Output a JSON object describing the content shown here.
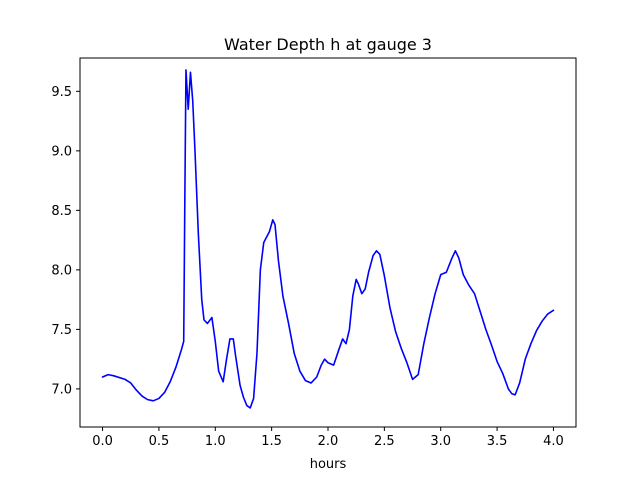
{
  "chart_data": {
    "type": "line",
    "title": "Water Depth h at gauge 3",
    "xlabel": "hours",
    "ylabel": "",
    "xlim": [
      -0.2,
      4.2
    ],
    "ylim": [
      6.68,
      9.78
    ],
    "xticks": [
      0.0,
      0.5,
      1.0,
      1.5,
      2.0,
      2.5,
      3.0,
      3.5,
      4.0
    ],
    "xtick_labels": [
      "0.0",
      "0.5",
      "1.0",
      "1.5",
      "2.0",
      "2.5",
      "3.0",
      "3.5",
      "4.0"
    ],
    "yticks": [
      7.0,
      7.5,
      8.0,
      8.5,
      9.0,
      9.5
    ],
    "ytick_labels": [
      "7.0",
      "7.5",
      "8.0",
      "8.5",
      "9.0",
      "9.5"
    ],
    "grid": false,
    "series": [
      {
        "name": "",
        "color": "#0000ff",
        "x": [
          0.0,
          0.05,
          0.1,
          0.2,
          0.25,
          0.3,
          0.35,
          0.4,
          0.45,
          0.5,
          0.55,
          0.6,
          0.65,
          0.7,
          0.72,
          0.73,
          0.74,
          0.76,
          0.78,
          0.8,
          0.82,
          0.85,
          0.88,
          0.9,
          0.93,
          0.97,
          1.0,
          1.03,
          1.07,
          1.1,
          1.13,
          1.16,
          1.18,
          1.22,
          1.25,
          1.28,
          1.31,
          1.34,
          1.37,
          1.4,
          1.43,
          1.48,
          1.51,
          1.53,
          1.56,
          1.6,
          1.65,
          1.7,
          1.75,
          1.8,
          1.85,
          1.9,
          1.94,
          1.97,
          2.0,
          2.05,
          2.1,
          2.13,
          2.16,
          2.19,
          2.22,
          2.25,
          2.27,
          2.3,
          2.33,
          2.36,
          2.4,
          2.43,
          2.46,
          2.5,
          2.55,
          2.6,
          2.65,
          2.7,
          2.75,
          2.8,
          2.85,
          2.9,
          2.95,
          3.0,
          3.05,
          3.1,
          3.13,
          3.16,
          3.2,
          3.25,
          3.3,
          3.35,
          3.4,
          3.45,
          3.5,
          3.55,
          3.6,
          3.63,
          3.66,
          3.7,
          3.75,
          3.8,
          3.85,
          3.9,
          3.95,
          4.0
        ],
        "y": [
          7.1,
          7.12,
          7.11,
          7.08,
          7.05,
          6.99,
          6.94,
          6.91,
          6.9,
          6.92,
          6.97,
          7.06,
          7.18,
          7.33,
          7.4,
          8.6,
          9.68,
          9.35,
          9.66,
          9.42,
          9.0,
          8.3,
          7.75,
          7.58,
          7.55,
          7.6,
          7.4,
          7.15,
          7.06,
          7.25,
          7.42,
          7.42,
          7.28,
          7.03,
          6.93,
          6.86,
          6.84,
          6.92,
          7.3,
          8.0,
          8.23,
          8.32,
          8.42,
          8.38,
          8.08,
          7.78,
          7.55,
          7.3,
          7.15,
          7.07,
          7.05,
          7.1,
          7.2,
          7.25,
          7.22,
          7.2,
          7.34,
          7.42,
          7.38,
          7.5,
          7.78,
          7.92,
          7.88,
          7.8,
          7.84,
          7.98,
          8.12,
          8.16,
          8.13,
          7.95,
          7.68,
          7.48,
          7.34,
          7.22,
          7.08,
          7.12,
          7.38,
          7.6,
          7.8,
          7.96,
          7.98,
          8.1,
          8.16,
          8.1,
          7.96,
          7.87,
          7.8,
          7.65,
          7.5,
          7.37,
          7.23,
          7.13,
          7.0,
          6.96,
          6.95,
          7.05,
          7.25,
          7.38,
          7.49,
          7.57,
          7.63,
          7.66
        ]
      }
    ]
  }
}
